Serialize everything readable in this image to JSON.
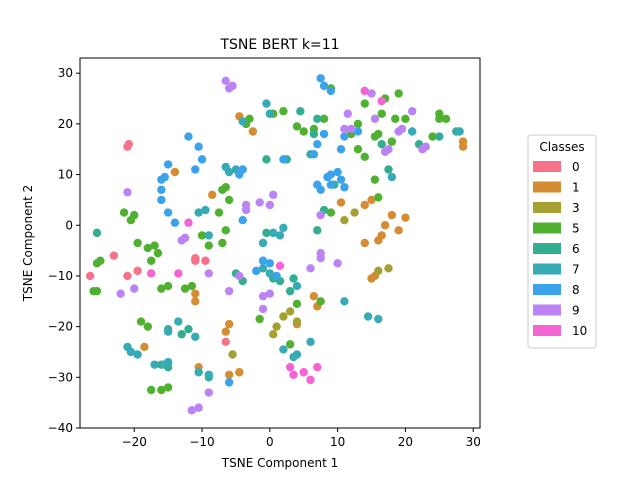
{
  "chart_data": {
    "type": "scatter",
    "title": "TSNE BERT k=11",
    "xlabel": "TSNE Component 1",
    "ylabel": "TSNE Component 2",
    "xlim": [
      -28,
      31
    ],
    "ylim": [
      -40,
      33
    ],
    "xticks": [
      -20,
      -10,
      0,
      10,
      20,
      30
    ],
    "yticks": [
      -40,
      -30,
      -20,
      -10,
      0,
      10,
      20,
      30
    ],
    "grid": false,
    "legend": {
      "title": "Classes",
      "placement": "right"
    },
    "series": [
      {
        "name": "0",
        "color": "#f77189",
        "points": [
          [
            -21,
            15.5
          ],
          [
            -20.8,
            16
          ],
          [
            -26.5,
            -10
          ],
          [
            -21,
            -10
          ],
          [
            -23,
            -6
          ],
          [
            -19.5,
            -9
          ],
          [
            -11,
            -6.5
          ],
          [
            -11,
            -7
          ],
          [
            -9.5,
            -7
          ],
          [
            -6.5,
            -23
          ]
        ]
      },
      {
        "name": "1",
        "color": "#d58c32",
        "points": [
          [
            -14,
            10.5
          ],
          [
            -8.5,
            6
          ],
          [
            -4.5,
            21.5
          ],
          [
            -2.5,
            18.5
          ],
          [
            -11,
            -13.5
          ],
          [
            -11,
            -15
          ],
          [
            -10.5,
            -28
          ],
          [
            -6,
            -19.5
          ],
          [
            -6.5,
            -21
          ],
          [
            -6,
            -29.5
          ],
          [
            -4.5,
            -29
          ],
          [
            -18.5,
            -24
          ],
          [
            4,
            -19.5
          ],
          [
            6.5,
            -14
          ],
          [
            7,
            -16
          ],
          [
            10.5,
            4.5
          ],
          [
            14,
            4
          ],
          [
            15,
            5
          ],
          [
            16.5,
            -2
          ],
          [
            17,
            0
          ],
          [
            18,
            2
          ],
          [
            19,
            -1
          ],
          [
            20,
            1.5
          ],
          [
            15,
            -10.5
          ],
          [
            15.5,
            -10
          ],
          [
            14,
            -3.5
          ],
          [
            16,
            -3
          ],
          [
            28.5,
            16.5
          ],
          [
            28.5,
            15.5
          ]
        ]
      },
      {
        "name": "3",
        "color": "#a4a031",
        "points": [
          [
            2,
            -18
          ],
          [
            3,
            -17
          ],
          [
            4,
            -19
          ],
          [
            0.5,
            -21.5
          ],
          [
            1,
            -20
          ],
          [
            -5.5,
            -25.5
          ],
          [
            11,
            1
          ],
          [
            12.5,
            2.5
          ],
          [
            17.5,
            -8.5
          ],
          [
            16,
            -9
          ]
        ]
      },
      {
        "name": "5",
        "color": "#50b131",
        "points": [
          [
            -21.5,
            2.5
          ],
          [
            -20.5,
            1
          ],
          [
            -20,
            2
          ],
          [
            -19.5,
            -3.5
          ],
          [
            -18,
            -4.5
          ],
          [
            -17,
            -4
          ],
          [
            -16.5,
            -5.5
          ],
          [
            -17.5,
            -7
          ],
          [
            -25.5,
            -7.5
          ],
          [
            -25,
            -7
          ],
          [
            -26,
            -13
          ],
          [
            -25.5,
            -13
          ],
          [
            -16,
            -12.5
          ],
          [
            -15,
            -12
          ],
          [
            -12.5,
            -12.5
          ],
          [
            -11.5,
            -12
          ],
          [
            -19,
            -19
          ],
          [
            -18,
            -20
          ],
          [
            -17.5,
            -32.5
          ],
          [
            -16,
            -32.5
          ],
          [
            -15,
            -32
          ],
          [
            -12.5,
            -2.5
          ],
          [
            -10,
            -2
          ],
          [
            -9,
            -4
          ],
          [
            -7,
            -3.5
          ],
          [
            -7.5,
            2.5
          ],
          [
            -6.5,
            -1
          ],
          [
            -6,
            5
          ],
          [
            -7,
            7
          ],
          [
            -6.5,
            7.5
          ],
          [
            -3.5,
            20
          ],
          [
            -3,
            21
          ],
          [
            0.5,
            22
          ],
          [
            2,
            22.5
          ],
          [
            4,
            19.5
          ],
          [
            5,
            18.5
          ],
          [
            6.5,
            19
          ],
          [
            8,
            21
          ],
          [
            9,
            27
          ],
          [
            12,
            18
          ],
          [
            13,
            20
          ],
          [
            14,
            24
          ],
          [
            15.5,
            17.5
          ],
          [
            16,
            18
          ],
          [
            16.5,
            22
          ],
          [
            19,
            26
          ],
          [
            17,
            25
          ],
          [
            18.5,
            21
          ],
          [
            18,
            16.5
          ],
          [
            20,
            21
          ],
          [
            24,
            17.5
          ],
          [
            25,
            22
          ],
          [
            25,
            21
          ],
          [
            26,
            21
          ],
          [
            13,
            15
          ],
          [
            14,
            13.5
          ],
          [
            15.5,
            9
          ],
          [
            16,
            5.5
          ],
          [
            9,
            2.5
          ],
          [
            -1.5,
            -18.5
          ],
          [
            4,
            -15.5
          ],
          [
            7.5,
            -15
          ],
          [
            3,
            -23.5
          ]
        ]
      },
      {
        "name": "6",
        "color": "#34ae91",
        "points": [
          [
            -5,
            -9.5
          ],
          [
            -4,
            -11
          ],
          [
            -0.5,
            -1.5
          ],
          [
            -0.5,
            13
          ],
          [
            2.5,
            13
          ],
          [
            0.5,
            -10.5
          ],
          [
            1.5,
            -11
          ],
          [
            3,
            -13
          ],
          [
            3.5,
            -10.5
          ],
          [
            7,
            -1
          ],
          [
            8,
            3
          ],
          [
            9.5,
            8
          ],
          [
            6,
            14
          ],
          [
            6.5,
            18
          ],
          [
            7,
            21
          ],
          [
            4.5,
            22.5
          ],
          [
            17.5,
            11
          ],
          [
            16.5,
            16
          ],
          [
            22,
            16
          ],
          [
            25,
            17.5
          ],
          [
            27.5,
            18.5
          ],
          [
            -25.5,
            -1.5
          ],
          [
            -15,
            -20.5
          ],
          [
            -12,
            -20.5
          ],
          [
            -13,
            -21.5
          ],
          [
            -16,
            -27.5
          ],
          [
            -15,
            -28
          ],
          [
            -9,
            -30
          ]
        ]
      },
      {
        "name": "7",
        "color": "#37abb5",
        "points": [
          [
            -15,
            -21
          ],
          [
            -15.5,
            -27.5
          ],
          [
            -15,
            -27
          ],
          [
            -17,
            -27.5
          ],
          [
            -20.5,
            -25
          ],
          [
            -19.5,
            -25.5
          ],
          [
            -21,
            -24
          ],
          [
            -13.5,
            -19
          ],
          [
            -11,
            -22
          ],
          [
            -10.5,
            -29
          ],
          [
            -9,
            -29.5
          ],
          [
            -10.5,
            2.5
          ],
          [
            -9.5,
            3
          ],
          [
            -9,
            -2
          ],
          [
            -6,
            10.5
          ],
          [
            -6.5,
            11.5
          ],
          [
            -5,
            11
          ],
          [
            -4,
            20.5
          ],
          [
            -0.5,
            24
          ],
          [
            0,
            22
          ],
          [
            -1,
            -3.5
          ],
          [
            -1,
            -8.5
          ],
          [
            0,
            -9.5
          ],
          [
            0.5,
            -1.5
          ],
          [
            1.5,
            -2
          ],
          [
            2,
            -0.5
          ],
          [
            4,
            -12
          ],
          [
            2,
            -24.5
          ],
          [
            4,
            -25.5
          ],
          [
            3.5,
            -26
          ],
          [
            6,
            -23
          ],
          [
            11,
            -15
          ],
          [
            14.5,
            -18
          ],
          [
            16,
            -18.5
          ],
          [
            18,
            9.5
          ],
          [
            21,
            18.5
          ],
          [
            28,
            18.5
          ]
        ]
      },
      {
        "name": "8",
        "color": "#3ba3ec",
        "points": [
          [
            -16,
            9
          ],
          [
            -15.5,
            9.5
          ],
          [
            -15,
            12
          ],
          [
            -16,
            7
          ],
          [
            -16,
            5
          ],
          [
            -15,
            2.5
          ],
          [
            -14,
            0.5
          ],
          [
            -12,
            17.5
          ],
          [
            -11,
            11
          ],
          [
            -10.5,
            15.5
          ],
          [
            -10,
            13
          ],
          [
            -4,
            1
          ],
          [
            -4.5,
            10
          ],
          [
            -4,
            11
          ],
          [
            -2,
            -9
          ],
          [
            -1,
            -7
          ],
          [
            0,
            -7.5
          ],
          [
            2,
            13
          ],
          [
            6.5,
            14
          ],
          [
            7,
            16
          ],
          [
            7,
            8
          ],
          [
            7.5,
            7
          ],
          [
            8.5,
            9.5
          ],
          [
            9,
            10
          ],
          [
            9,
            8
          ],
          [
            10,
            10.5
          ],
          [
            10.5,
            9
          ],
          [
            11,
            7.5
          ],
          [
            10.5,
            15
          ],
          [
            11,
            17.5
          ],
          [
            13,
            18.5
          ],
          [
            8,
            18
          ],
          [
            8,
            27.5
          ],
          [
            7.5,
            29
          ],
          [
            9,
            26.5
          ],
          [
            1,
            -10
          ],
          [
            -6,
            -31
          ]
        ]
      },
      {
        "name": "9",
        "color": "#bb83f4",
        "points": [
          [
            -21,
            6.5
          ],
          [
            -22,
            -13.5
          ],
          [
            -20,
            -12.5
          ],
          [
            -13,
            -3
          ],
          [
            -12.5,
            -2.5
          ],
          [
            -9,
            -9.5
          ],
          [
            -6,
            -13
          ],
          [
            -4.5,
            -10
          ],
          [
            -3.5,
            3
          ],
          [
            -3.5,
            4
          ],
          [
            -1.5,
            4.5
          ],
          [
            0,
            4
          ],
          [
            0.5,
            6
          ],
          [
            0,
            -13.5
          ],
          [
            -1,
            -16.5
          ],
          [
            -6.5,
            28.5
          ],
          [
            -6,
            27
          ],
          [
            -5.5,
            27.5
          ],
          [
            -1,
            -14
          ],
          [
            6,
            -8.5
          ],
          [
            7.5,
            -5.5
          ],
          [
            7.5,
            -6.5
          ],
          [
            10,
            -7.5
          ],
          [
            7.5,
            2
          ],
          [
            11,
            19
          ],
          [
            11.5,
            22
          ],
          [
            12,
            19
          ],
          [
            15,
            26
          ],
          [
            15.5,
            21
          ],
          [
            17.5,
            15
          ],
          [
            17,
            14.5
          ],
          [
            19,
            18.5
          ],
          [
            19.5,
            19
          ],
          [
            21,
            22.5
          ],
          [
            22.5,
            15
          ],
          [
            23,
            15.5
          ],
          [
            -9,
            -33
          ],
          [
            -10.5,
            -36
          ],
          [
            -11.5,
            -36.5
          ]
        ]
      },
      {
        "name": "10",
        "color": "#f564d4",
        "points": [
          [
            -17.5,
            -9.5
          ],
          [
            -13.5,
            -9.5
          ],
          [
            1.5,
            -8
          ],
          [
            3,
            -28
          ],
          [
            3.5,
            -29.5
          ],
          [
            5,
            -29
          ],
          [
            6,
            -30.5
          ],
          [
            7,
            -28
          ],
          [
            14,
            26.5
          ],
          [
            16.5,
            24.5
          ],
          [
            -12,
            0.5
          ]
        ]
      }
    ]
  }
}
